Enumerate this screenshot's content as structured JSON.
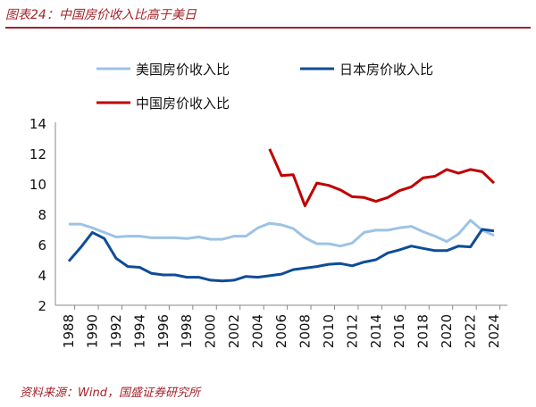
{
  "title": "图表24：中国房价收入比高于美日",
  "source": "资料来源：Wind，国盛证券研究所",
  "chart_data": {
    "type": "line",
    "title": "",
    "xlabel": "",
    "ylabel": "",
    "ylim": [
      2,
      14
    ],
    "yticks": [
      2,
      4,
      6,
      8,
      10,
      12,
      14
    ],
    "xticks": [
      1988,
      1990,
      1992,
      1994,
      1996,
      1998,
      2000,
      2002,
      2004,
      2006,
      2008,
      2010,
      2012,
      2014,
      2016,
      2018,
      2020,
      2022,
      2024
    ],
    "grid": false,
    "legend_position": "top",
    "x": [
      1988,
      1989,
      1990,
      1991,
      1992,
      1993,
      1994,
      1995,
      1996,
      1997,
      1998,
      1999,
      2000,
      2001,
      2002,
      2003,
      2004,
      2005,
      2006,
      2007,
      2008,
      2009,
      2010,
      2011,
      2012,
      2013,
      2014,
      2015,
      2016,
      2017,
      2018,
      2019,
      2020,
      2021,
      2022,
      2023,
      2024
    ],
    "series": [
      {
        "name": "美国房价收入比",
        "color": "#9dc3e6",
        "values": [
          7.35,
          7.35,
          7.1,
          6.8,
          6.5,
          6.55,
          6.55,
          6.45,
          6.45,
          6.45,
          6.4,
          6.5,
          6.35,
          6.35,
          6.55,
          6.55,
          7.1,
          7.4,
          7.3,
          7.05,
          6.45,
          6.05,
          6.05,
          5.9,
          6.1,
          6.8,
          6.95,
          6.95,
          7.1,
          7.2,
          6.85,
          6.55,
          6.2,
          6.7,
          7.6,
          6.95,
          6.6
        ]
      },
      {
        "name": "日本房价收入比",
        "color": "#0f4c97",
        "values": [
          4.9,
          5.8,
          6.8,
          6.4,
          5.1,
          4.55,
          4.5,
          4.1,
          4.0,
          4.0,
          3.85,
          3.85,
          3.65,
          3.6,
          3.65,
          3.9,
          3.85,
          3.95,
          4.05,
          4.35,
          4.45,
          4.55,
          4.7,
          4.75,
          4.6,
          4.85,
          5.0,
          5.45,
          5.65,
          5.9,
          5.75,
          5.6,
          5.6,
          5.9,
          5.85,
          7.0,
          6.9
        ]
      },
      {
        "name": "中国房价收入比",
        "color": "#c00000",
        "values": [
          null,
          null,
          null,
          null,
          null,
          null,
          null,
          null,
          null,
          null,
          null,
          null,
          null,
          null,
          null,
          null,
          null,
          12.3,
          10.55,
          10.6,
          8.55,
          10.05,
          9.9,
          9.6,
          9.15,
          9.1,
          8.85,
          9.1,
          9.55,
          9.8,
          10.4,
          10.5,
          10.95,
          10.7,
          10.95,
          10.8,
          10.05
        ]
      }
    ]
  }
}
